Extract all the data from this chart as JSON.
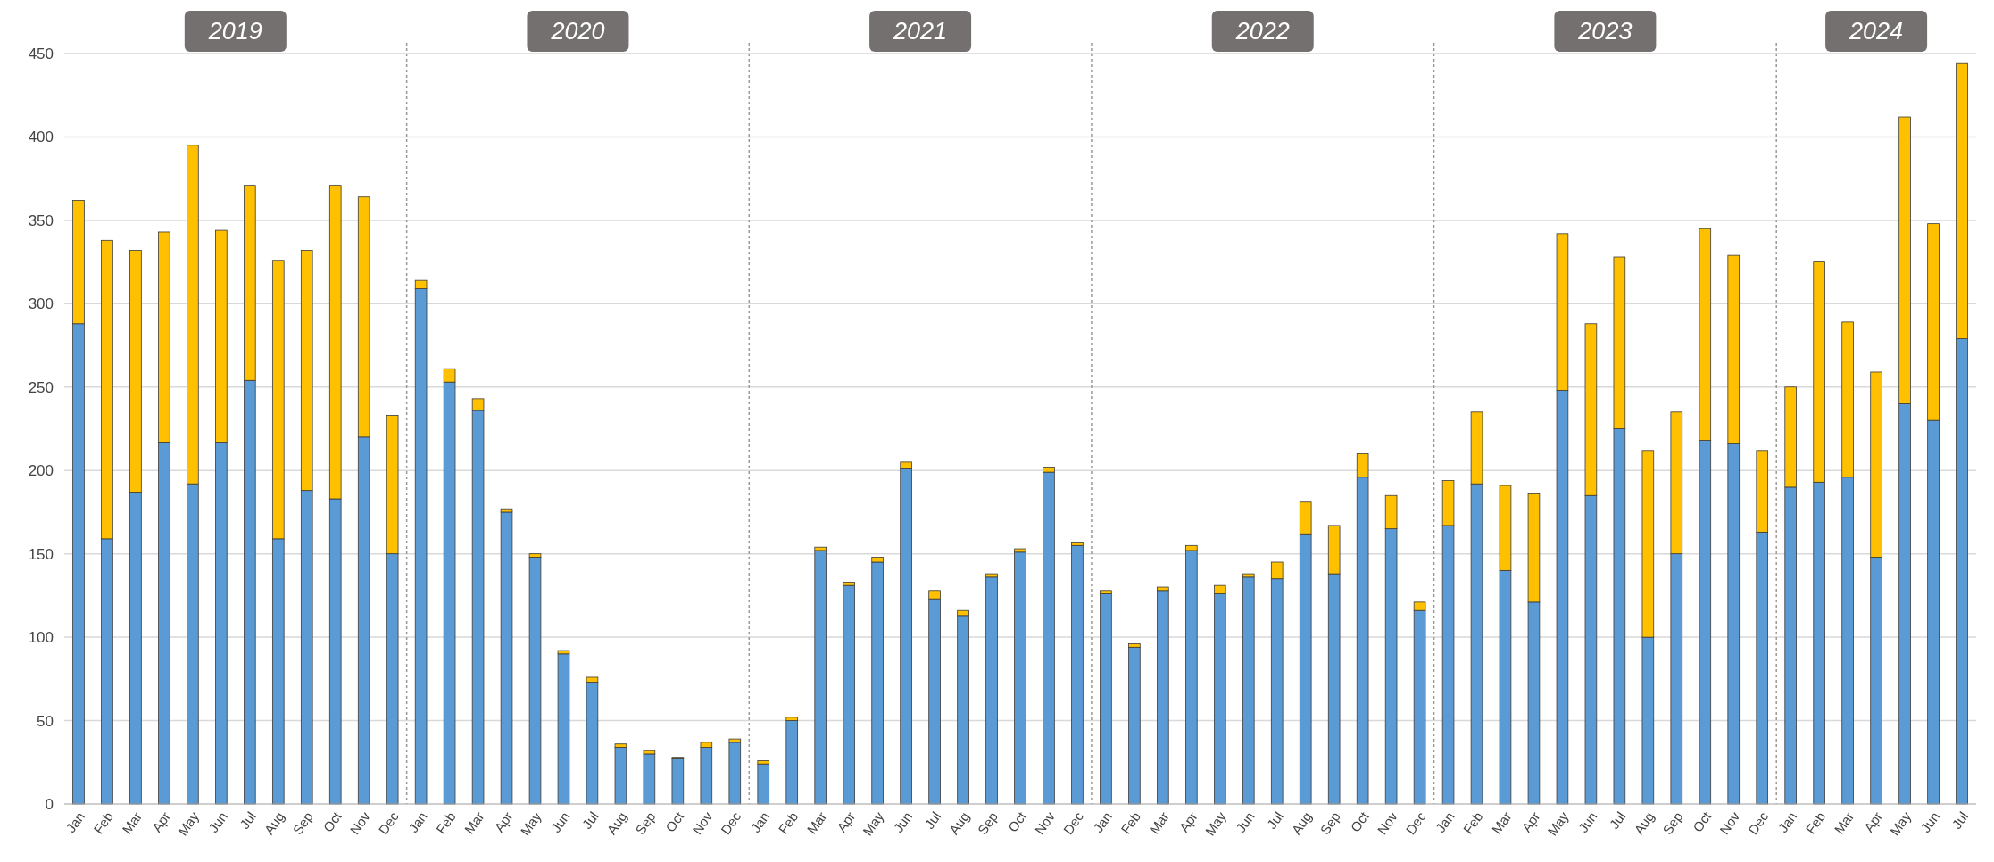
{
  "chart_data": {
    "type": "bar",
    "stacked": true,
    "grid": "y",
    "categories": [
      "Jan",
      "Feb",
      "Mar",
      "Apr",
      "May",
      "Jun",
      "Jul",
      "Aug",
      "Sep",
      "Oct",
      "Nov",
      "Dec",
      "Jan",
      "Feb",
      "Mar",
      "Apr",
      "May",
      "Jun",
      "Jul",
      "Aug",
      "Sep",
      "Oct",
      "Nov",
      "Dec",
      "Jan",
      "Feb",
      "Mar",
      "Apr",
      "May",
      "Jun",
      "Jul",
      "Aug",
      "Sep",
      "Oct",
      "Nov",
      "Dec",
      "Jan",
      "Feb",
      "Mar",
      "Apr",
      "May",
      "Jun",
      "Jul",
      "Aug",
      "Sep",
      "Oct",
      "Nov",
      "Dec",
      "Jan",
      "Feb",
      "Mar",
      "Apr",
      "May",
      "Jun",
      "Jul",
      "Aug",
      "Sep",
      "Oct",
      "Nov",
      "Dec",
      "Jan",
      "Feb",
      "Mar",
      "Apr",
      "May",
      "Jun",
      "Jul"
    ],
    "series": [
      {
        "color": "#5b9bd5",
        "values": [
          288,
          159,
          187,
          217,
          192,
          217,
          254,
          159,
          188,
          183,
          220,
          150,
          309,
          253,
          236,
          175,
          148,
          90,
          73,
          34,
          30,
          27,
          34,
          37,
          24,
          50,
          152,
          131,
          145,
          201,
          123,
          113,
          136,
          151,
          199,
          155,
          126,
          94,
          128,
          152,
          126,
          136,
          135,
          162,
          138,
          196,
          165,
          116,
          167,
          192,
          140,
          121,
          248,
          185,
          225,
          100,
          150,
          218,
          216,
          163,
          190,
          193,
          196,
          148,
          240,
          230,
          279
        ]
      },
      {
        "color": "#ffc000",
        "values": [
          74,
          179,
          145,
          126,
          203,
          127,
          117,
          167,
          144,
          188,
          144,
          83,
          5,
          8,
          7,
          2,
          2,
          2,
          3,
          2,
          2,
          1,
          3,
          2,
          2,
          2,
          2,
          2,
          3,
          4,
          5,
          3,
          2,
          2,
          3,
          2,
          2,
          2,
          2,
          3,
          5,
          2,
          10,
          19,
          29,
          14,
          20,
          5,
          27,
          43,
          51,
          65,
          94,
          103,
          103,
          112,
          85,
          127,
          113,
          49,
          60,
          132,
          93,
          111,
          172,
          118,
          165
        ]
      }
    ],
    "ylim": [
      0,
      450
    ],
    "yticks": [
      0,
      50,
      100,
      150,
      200,
      250,
      300,
      350,
      400,
      450
    ],
    "annotations": [
      "2019",
      "2020",
      "2021",
      "2022",
      "2023",
      "2024"
    ]
  }
}
